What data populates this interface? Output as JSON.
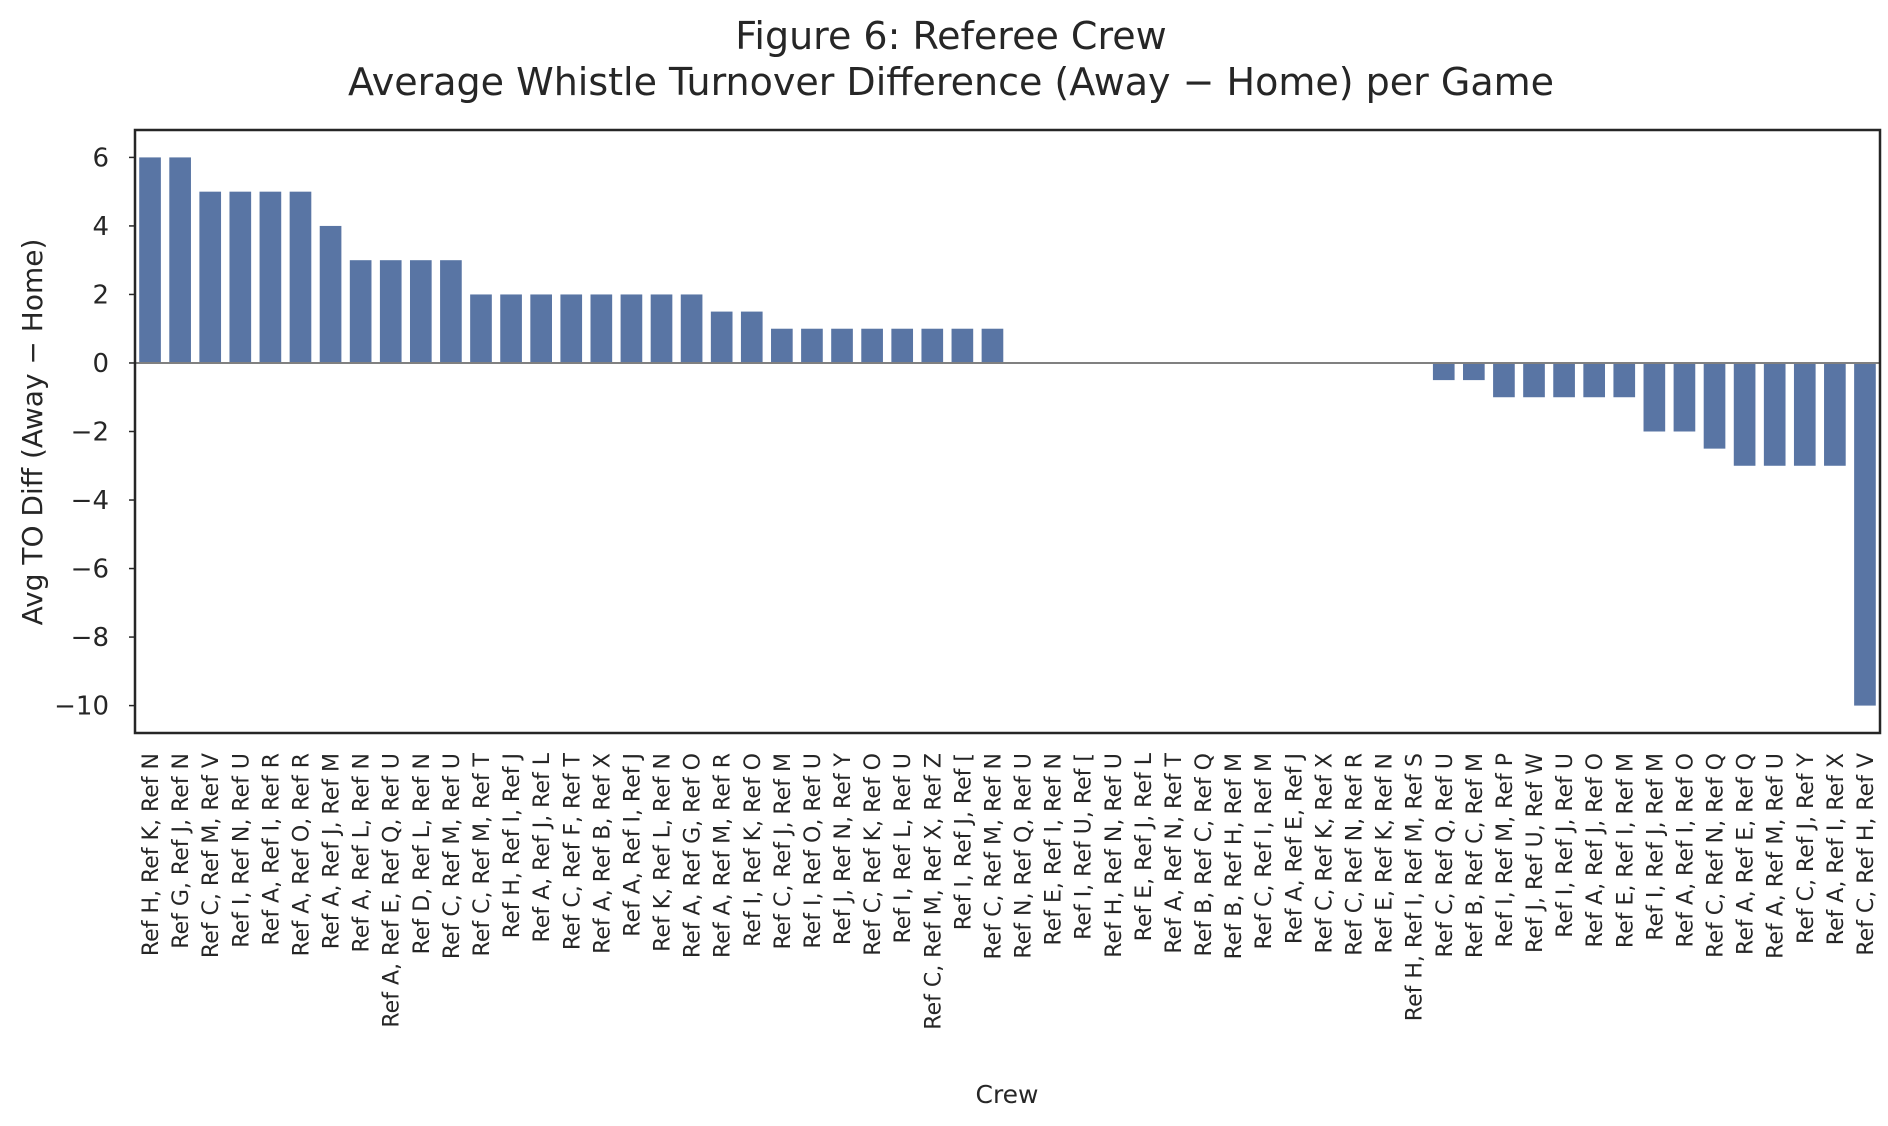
{
  "chart_data": {
    "type": "bar",
    "title": "Figure 6: Referee Crew",
    "subtitle": "Average Whistle Turnover Difference (Away − Home) per Game",
    "xlabel": "Crew",
    "ylabel": "Avg TO Diff (Away − Home)",
    "ylim": [
      -10.8,
      6.8
    ],
    "yticks": [
      -10,
      -8,
      -6,
      -4,
      -2,
      0,
      2,
      4,
      6
    ],
    "grid": false,
    "legend": "none",
    "bar_color": "#5975a4",
    "zero_line_color": "#808080",
    "categories": [
      "Ref H, Ref K, Ref N",
      "Ref G, Ref J, Ref N",
      "Ref C, Ref M, Ref V",
      "Ref I, Ref N, Ref U",
      "Ref A, Ref I, Ref R",
      "Ref A, Ref O, Ref R",
      "Ref A, Ref J, Ref M",
      "Ref A, Ref L, Ref N",
      "Ref A, Ref E, Ref Q, Ref U",
      "Ref D, Ref L, Ref N",
      "Ref C, Ref M, Ref U",
      "Ref C, Ref M, Ref T",
      "Ref H, Ref I, Ref J",
      "Ref A, Ref J, Ref L",
      "Ref C, Ref F, Ref T",
      "Ref A, Ref B, Ref X",
      "Ref A, Ref I, Ref J",
      "Ref K, Ref L, Ref N",
      "Ref A, Ref G, Ref O",
      "Ref A, Ref M, Ref R",
      "Ref I, Ref K, Ref O",
      "Ref C, Ref J, Ref M",
      "Ref I, Ref O, Ref U",
      "Ref J, Ref N, Ref Y",
      "Ref C, Ref K, Ref O",
      "Ref I, Ref L, Ref U",
      "Ref C, Ref M, Ref X, Ref Z",
      "Ref I, Ref J, Ref [",
      "Ref C, Ref M, Ref N",
      "Ref N, Ref Q, Ref U",
      "Ref E, Ref I, Ref N",
      "Ref I, Ref U, Ref [",
      "Ref H, Ref N, Ref U",
      "Ref E, Ref J, Ref L",
      "Ref A, Ref N, Ref T",
      "Ref B, Ref C, Ref Q",
      "Ref B, Ref H, Ref M",
      "Ref C, Ref I, Ref M",
      "Ref A, Ref E, Ref J",
      "Ref C, Ref K, Ref X",
      "Ref C, Ref N, Ref R",
      "Ref E, Ref K, Ref N",
      "Ref H, Ref I, Ref M, Ref S",
      "Ref C, Ref Q, Ref U",
      "Ref B, Ref C, Ref M",
      "Ref I, Ref M, Ref P",
      "Ref J, Ref U, Ref W",
      "Ref I, Ref J, Ref U",
      "Ref A, Ref J, Ref O",
      "Ref E, Ref I, Ref M",
      "Ref I, Ref J, Ref M",
      "Ref A, Ref I, Ref O",
      "Ref C, Ref N, Ref Q",
      "Ref A, Ref E, Ref Q",
      "Ref A, Ref M, Ref U",
      "Ref C, Ref J, Ref Y",
      "Ref A, Ref I, Ref X",
      "Ref C, Ref H, Ref V"
    ],
    "values": [
      6,
      6,
      5,
      5,
      5,
      5,
      4,
      3,
      3,
      3,
      3,
      2,
      2,
      2,
      2,
      2,
      2,
      2,
      2,
      1.5,
      1.5,
      1,
      1,
      1,
      1,
      1,
      1,
      1,
      1,
      0,
      0,
      0,
      0,
      0,
      0,
      0,
      0,
      0,
      0,
      0,
      0,
      0,
      0,
      -0.5,
      -0.5,
      -1,
      -1,
      -1,
      -1,
      -1,
      -2,
      -2,
      -2.5,
      -3,
      -3,
      -3,
      -3,
      -10
    ]
  }
}
